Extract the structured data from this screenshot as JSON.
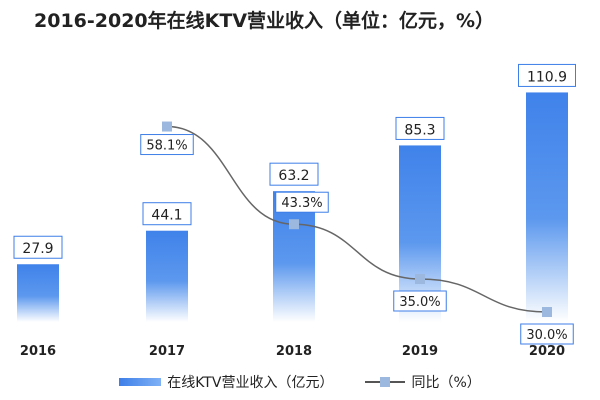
{
  "chart_data": {
    "type": "bar",
    "title": "2016-2020年在线KTV营业收入（单位：亿元，%）",
    "categories": [
      "2016",
      "2017",
      "2018",
      "2019",
      "2020"
    ],
    "series": [
      {
        "name": "在线KTV营业收入（亿元）",
        "type": "bar",
        "values": [
          27.9,
          44.1,
          63.2,
          85.3,
          110.9
        ],
        "color": "#4a8ced"
      },
      {
        "name": "同比（%）",
        "type": "line",
        "values": [
          null,
          58.1,
          43.3,
          35.0,
          30.0
        ],
        "labels": [
          "",
          "58.1%",
          "43.3%",
          "35.0%",
          "30.0%"
        ],
        "color": "#666666",
        "marker_color": "#9db8de"
      }
    ],
    "bar_labels": [
      "27.9",
      "44.1",
      "63.2",
      "85.3",
      "110.9"
    ],
    "legend": {
      "position": "bottom",
      "entries": [
        "在线KTV营业收入（亿元）",
        "同比（%）"
      ]
    },
    "grid": false
  }
}
